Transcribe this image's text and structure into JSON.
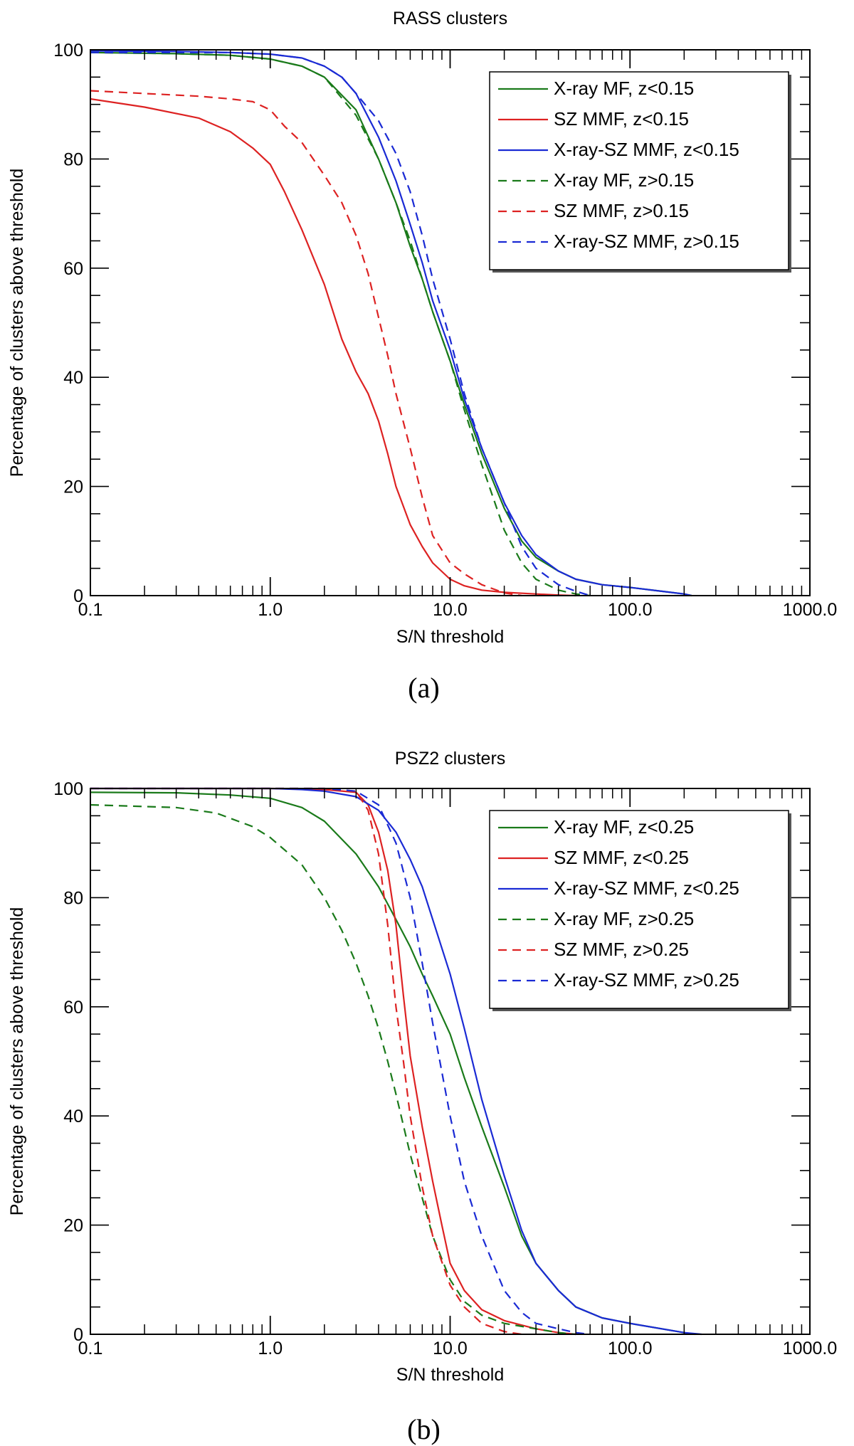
{
  "chart_data": [
    {
      "type": "line",
      "title": "RASS clusters",
      "caption": "(a)",
      "xlabel": "S/N threshold",
      "ylabel": "Percentage of clusters above threshold",
      "xscale": "log",
      "xlim": [
        0.1,
        1000
      ],
      "ylim": [
        0,
        100
      ],
      "xticks": [
        {
          "value": 0.1,
          "label": "0.1"
        },
        {
          "value": 1,
          "label": "1.0"
        },
        {
          "value": 10,
          "label": "10.0"
        },
        {
          "value": 100,
          "label": "100.0"
        },
        {
          "value": 1000,
          "label": "1000.0"
        }
      ],
      "yticks": [
        {
          "value": 0,
          "label": "0"
        },
        {
          "value": 20,
          "label": "20"
        },
        {
          "value": 40,
          "label": "40"
        },
        {
          "value": 60,
          "label": "60"
        },
        {
          "value": 80,
          "label": "80"
        },
        {
          "value": 100,
          "label": "100"
        }
      ],
      "legend_position": "top-right",
      "series": [
        {
          "name": "X-ray MF, z<0.15",
          "color": "#1a7a1a",
          "style": "solid",
          "x": [
            0.1,
            0.3,
            0.6,
            1.0,
            1.5,
            2.0,
            3.0,
            4.0,
            5.0,
            6.0,
            7.0,
            8.0,
            10.0,
            12.0,
            15.0,
            20.0,
            25.0,
            30.0,
            40.0,
            50.0,
            70.0,
            100.0,
            150.0,
            200.0,
            220.0
          ],
          "y": [
            99.5,
            99.3,
            99.0,
            98.3,
            97.0,
            95.0,
            89.0,
            80.0,
            72.0,
            64.0,
            58.0,
            52.0,
            43.0,
            35.0,
            26.0,
            16.0,
            10.0,
            7.0,
            4.5,
            3.0,
            2.0,
            1.5,
            0.8,
            0.3,
            0
          ]
        },
        {
          "name": "SZ MMF, z<0.15",
          "color": "#dd2222",
          "style": "solid",
          "x": [
            0.1,
            0.2,
            0.4,
            0.6,
            0.8,
            1.0,
            1.2,
            1.5,
            2.0,
            2.5,
            3.0,
            3.5,
            4.0,
            4.5,
            5.0,
            6.0,
            7.0,
            8.0,
            10.0,
            12.0,
            15.0,
            20.0,
            30.0,
            40.0,
            50.0
          ],
          "y": [
            91.0,
            89.5,
            87.5,
            85.0,
            82.0,
            79.0,
            74.0,
            67.0,
            57.0,
            47.0,
            41.0,
            37.0,
            32.0,
            26.0,
            20.0,
            13.0,
            9.0,
            6.0,
            3.0,
            1.8,
            1.0,
            0.6,
            0.3,
            0.1,
            0
          ]
        },
        {
          "name": "X-ray-SZ MMF, z<0.15",
          "color": "#1a2ad4",
          "style": "solid",
          "x": [
            0.1,
            0.3,
            0.6,
            1.0,
            1.5,
            2.0,
            2.5,
            3.0,
            4.0,
            5.0,
            6.0,
            7.0,
            8.0,
            10.0,
            12.0,
            15.0,
            20.0,
            25.0,
            30.0,
            40.0,
            50.0,
            70.0,
            100.0,
            150.0,
            200.0,
            220.0
          ],
          "y": [
            99.8,
            99.7,
            99.5,
            99.2,
            98.5,
            97.0,
            95.0,
            92.0,
            84.0,
            76.0,
            68.0,
            61.0,
            54.0,
            45.0,
            36.0,
            27.0,
            17.0,
            11.0,
            7.5,
            4.5,
            3.0,
            2.0,
            1.5,
            0.8,
            0.3,
            0
          ]
        },
        {
          "name": "X-ray MF, z>0.15",
          "color": "#1a7a1a",
          "style": "dashed",
          "x": [
            0.1,
            0.3,
            0.6,
            1.0,
            1.5,
            2.0,
            3.0,
            4.0,
            5.0,
            6.0,
            7.0,
            8.0,
            10.0,
            12.0,
            15.0,
            20.0,
            25.0,
            30.0,
            40.0,
            50.0,
            60.0
          ],
          "y": [
            99.5,
            99.3,
            99.0,
            98.3,
            97.0,
            95.0,
            88.0,
            80.0,
            72.0,
            65.0,
            58.0,
            52.0,
            43.0,
            34.0,
            24.0,
            12.0,
            6.0,
            3.0,
            1.0,
            0.3,
            0
          ]
        },
        {
          "name": "SZ MMF, z>0.15",
          "color": "#dd2222",
          "style": "dashed",
          "x": [
            0.1,
            0.2,
            0.4,
            0.6,
            0.8,
            1.0,
            1.2,
            1.5,
            2.0,
            2.5,
            3.0,
            3.5,
            4.0,
            4.5,
            5.0,
            6.0,
            7.0,
            8.0,
            10.0,
            12.0,
            15.0,
            20.0,
            25.0
          ],
          "y": [
            92.5,
            92.0,
            91.5,
            91.0,
            90.5,
            89.0,
            86.0,
            83.0,
            77.0,
            72.0,
            66.0,
            59.0,
            51.0,
            44.0,
            37.0,
            27.0,
            18.0,
            11.0,
            6.0,
            4.0,
            2.0,
            0.5,
            0
          ]
        },
        {
          "name": "X-ray-SZ MMF, z>0.15",
          "color": "#1a2ad4",
          "style": "dashed",
          "x": [
            0.1,
            0.3,
            0.6,
            1.0,
            1.5,
            2.0,
            2.5,
            3.0,
            4.0,
            5.0,
            6.0,
            7.0,
            8.0,
            10.0,
            12.0,
            15.0,
            20.0,
            25.0,
            30.0,
            40.0,
            50.0,
            60.0
          ],
          "y": [
            99.5,
            99.5,
            99.5,
            99.2,
            98.5,
            97.0,
            95.0,
            92.0,
            87.0,
            81.0,
            74.0,
            66.0,
            58.0,
            47.0,
            37.0,
            27.0,
            17.0,
            9.0,
            5.0,
            2.0,
            0.8,
            0
          ]
        }
      ]
    },
    {
      "type": "line",
      "title": "PSZ2 clusters",
      "caption": "(b)",
      "xlabel": "S/N threshold",
      "ylabel": "Percentage of clusters above threshold",
      "xscale": "log",
      "xlim": [
        0.1,
        1000
      ],
      "ylim": [
        0,
        100
      ],
      "xticks": [
        {
          "value": 0.1,
          "label": "0.1"
        },
        {
          "value": 1,
          "label": "1.0"
        },
        {
          "value": 10,
          "label": "10.0"
        },
        {
          "value": 100,
          "label": "100.0"
        },
        {
          "value": 1000,
          "label": "1000.0"
        }
      ],
      "yticks": [
        {
          "value": 0,
          "label": "0"
        },
        {
          "value": 20,
          "label": "20"
        },
        {
          "value": 40,
          "label": "40"
        },
        {
          "value": 60,
          "label": "60"
        },
        {
          "value": 80,
          "label": "80"
        },
        {
          "value": 100,
          "label": "100"
        }
      ],
      "legend_position": "top-right",
      "series": [
        {
          "name": "X-ray MF, z<0.25",
          "color": "#1a7a1a",
          "style": "solid",
          "x": [
            0.1,
            0.3,
            0.6,
            1.0,
            1.5,
            2.0,
            3.0,
            4.0,
            5.0,
            6.0,
            7.0,
            8.0,
            10.0,
            12.0,
            15.0,
            20.0,
            25.0,
            30.0,
            40.0,
            50.0,
            70.0,
            100.0,
            150.0,
            200.0,
            230.0
          ],
          "y": [
            99.3,
            99.2,
            98.8,
            98.2,
            96.5,
            94.0,
            88.0,
            82.0,
            76.0,
            71.0,
            66.0,
            62.0,
            55.0,
            47.0,
            38.0,
            27.0,
            18.0,
            13.0,
            8.0,
            5.0,
            3.0,
            2.0,
            1.0,
            0.3,
            0
          ]
        },
        {
          "name": "SZ MMF, z<0.25",
          "color": "#dd2222",
          "style": "solid",
          "x": [
            0.1,
            1.0,
            2.0,
            3.0,
            3.5,
            4.0,
            4.5,
            5.0,
            5.5,
            6.0,
            7.0,
            8.0,
            9.0,
            10.0,
            12.0,
            15.0,
            20.0,
            30.0,
            40.0,
            50.0
          ],
          "y": [
            100,
            100,
            99.8,
            99.3,
            97.0,
            92.0,
            85.0,
            75.0,
            62.0,
            51.0,
            38.0,
            28.0,
            20.0,
            13.0,
            8.0,
            4.5,
            2.5,
            1.0,
            0.3,
            0
          ]
        },
        {
          "name": "X-ray-SZ MMF, z<0.25",
          "color": "#1a2ad4",
          "style": "solid",
          "x": [
            0.1,
            0.3,
            0.6,
            1.0,
            1.5,
            2.0,
            3.0,
            4.0,
            5.0,
            6.0,
            7.0,
            8.0,
            10.0,
            12.0,
            15.0,
            20.0,
            25.0,
            30.0,
            40.0,
            50.0,
            70.0,
            100.0,
            150.0,
            200.0,
            250.0
          ],
          "y": [
            100,
            100,
            100,
            100,
            99.8,
            99.5,
            98.5,
            96.0,
            92.0,
            87.0,
            82.0,
            76.0,
            66.0,
            56.0,
            43.0,
            29.0,
            19.0,
            13.0,
            8.0,
            5.0,
            3.0,
            2.0,
            1.0,
            0.3,
            0
          ]
        },
        {
          "name": "X-ray MF, z>0.25",
          "color": "#1a7a1a",
          "style": "dashed",
          "x": [
            0.1,
            0.3,
            0.5,
            0.8,
            1.0,
            1.5,
            2.0,
            2.5,
            3.0,
            3.5,
            4.0,
            4.5,
            5.0,
            6.0,
            7.0,
            8.0,
            10.0,
            12.0,
            15.0,
            20.0,
            30.0,
            40.0,
            50.0
          ],
          "y": [
            97.0,
            96.5,
            95.5,
            93.0,
            91.0,
            86.0,
            80.0,
            74.0,
            68.0,
            62.0,
            56.0,
            50.0,
            44.0,
            33.0,
            25.0,
            18.0,
            10.0,
            6.0,
            3.5,
            2.0,
            1.0,
            0.3,
            0
          ]
        },
        {
          "name": "SZ MMF, z>0.25",
          "color": "#dd2222",
          "style": "dashed",
          "x": [
            0.1,
            1.0,
            2.0,
            3.0,
            3.5,
            4.0,
            4.5,
            5.0,
            5.5,
            6.0,
            7.0,
            8.0,
            10.0,
            12.0,
            15.0,
            20.0,
            25.0
          ],
          "y": [
            100,
            100,
            100,
            99.5,
            96.0,
            88.0,
            75.0,
            60.0,
            50.0,
            40.0,
            27.0,
            18.0,
            9.0,
            5.0,
            2.0,
            0.5,
            0
          ]
        },
        {
          "name": "X-ray-SZ MMF, z>0.25",
          "color": "#1a2ad4",
          "style": "dashed",
          "x": [
            0.1,
            1.0,
            2.0,
            3.0,
            4.0,
            5.0,
            6.0,
            7.0,
            8.0,
            10.0,
            12.0,
            15.0,
            20.0,
            25.0,
            30.0,
            40.0,
            50.0,
            60.0
          ],
          "y": [
            100,
            100,
            100,
            99.5,
            97.0,
            90.0,
            80.0,
            68.0,
            57.0,
            40.0,
            28.0,
            18.0,
            8.0,
            4.0,
            2.0,
            1.0,
            0.3,
            0
          ]
        }
      ]
    }
  ]
}
